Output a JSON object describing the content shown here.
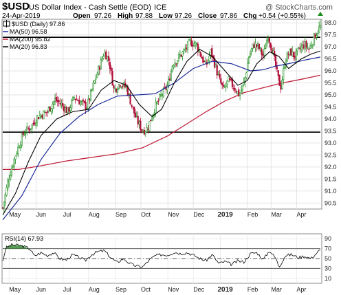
{
  "header": {
    "symbol": "$USD",
    "title": "US Dollar Index - Cash Settle (EOD)",
    "exchange": "ICE",
    "watermark": "@ StockCharts.com",
    "date": "24-Apr-2019",
    "quote": {
      "open_label": "Open",
      "open": "97.26",
      "high_label": "High",
      "high": "97.88",
      "low_label": "Low",
      "low": "97.26",
      "close_label": "Close",
      "close": "97.86",
      "chg_label": "Chg",
      "chg": "+0.54 (+0.55%)"
    }
  },
  "legend": {
    "main": "$USD (Daily) 97.86",
    "ma50": "MA(50) 96.58",
    "ma200": "MA(200) 95.82",
    "ma20": "MA(20) 96.83"
  },
  "rsi_legend": "RSI(14) 67.93",
  "colors": {
    "up": "#1a8c1a",
    "down": "#b0103a",
    "ma50": "#1a2a9a",
    "ma200": "#c0203a",
    "ma20": "#000000",
    "rsi_fill": "#3a8a3a"
  },
  "x_labels": [
    "May",
    "Jun",
    "Jul",
    "Aug",
    "Sep",
    "Oct",
    "Nov",
    "Dec",
    "2019",
    "Feb",
    "Mar",
    "Apr"
  ],
  "chart_data": {
    "type": "candlestick",
    "y_ticks": [
      "90.5",
      "91.0",
      "91.5",
      "92.0",
      "92.5",
      "93.0",
      "93.5",
      "94.0",
      "94.5",
      "95.0",
      "95.5",
      "96.0",
      "96.5",
      "97.0",
      "97.5",
      "98.0"
    ],
    "ylim": [
      90.25,
      98.15
    ],
    "horizontal_lines": [
      97.4,
      93.45
    ],
    "price_path": [
      [
        0,
        90.3
      ],
      [
        0.018,
        91.5
      ],
      [
        0.04,
        92.5
      ],
      [
        0.065,
        93.4
      ],
      [
        0.09,
        93.7
      ],
      [
        0.11,
        94.1
      ],
      [
        0.14,
        94.3
      ],
      [
        0.165,
        94.8
      ],
      [
        0.185,
        94.6
      ],
      [
        0.205,
        94.3
      ],
      [
        0.225,
        94.9
      ],
      [
        0.245,
        94.7
      ],
      [
        0.265,
        94.5
      ],
      [
        0.29,
        95.6
      ],
      [
        0.305,
        96.2
      ],
      [
        0.32,
        96.8
      ],
      [
        0.335,
        96.4
      ],
      [
        0.35,
        95.2
      ],
      [
        0.37,
        95.5
      ],
      [
        0.39,
        95.3
      ],
      [
        0.405,
        94.6
      ],
      [
        0.42,
        94.0
      ],
      [
        0.44,
        93.5
      ],
      [
        0.455,
        93.6
      ],
      [
        0.48,
        94.5
      ],
      [
        0.5,
        95.0
      ],
      [
        0.52,
        95.4
      ],
      [
        0.535,
        96.3
      ],
      [
        0.55,
        96.5
      ],
      [
        0.57,
        96.8
      ],
      [
        0.59,
        97.2
      ],
      [
        0.61,
        97.1
      ],
      [
        0.625,
        96.6
      ],
      [
        0.64,
        96.2
      ],
      [
        0.655,
        96.8
      ],
      [
        0.665,
        96.4
      ],
      [
        0.68,
        95.7
      ],
      [
        0.695,
        95.2
      ],
      [
        0.71,
        95.6
      ],
      [
        0.73,
        95.3
      ],
      [
        0.745,
        95.0
      ],
      [
        0.76,
        95.5
      ],
      [
        0.775,
        96.6
      ],
      [
        0.79,
        97.1
      ],
      [
        0.805,
        97.0
      ],
      [
        0.82,
        96.6
      ],
      [
        0.835,
        97.5
      ],
      [
        0.85,
        96.8
      ],
      [
        0.865,
        95.8
      ],
      [
        0.875,
        95.3
      ],
      [
        0.89,
        96.5
      ],
      [
        0.905,
        96.8
      ],
      [
        0.92,
        96.6
      ],
      [
        0.935,
        96.9
      ],
      [
        0.95,
        97.1
      ],
      [
        0.965,
        96.9
      ],
      [
        0.98,
        97.4
      ],
      [
        1,
        97.86
      ]
    ],
    "ma50_path": [
      [
        0,
        89.8
      ],
      [
        0.06,
        90.8
      ],
      [
        0.12,
        92.3
      ],
      [
        0.18,
        93.4
      ],
      [
        0.24,
        94.1
      ],
      [
        0.3,
        94.6
      ],
      [
        0.36,
        94.95
      ],
      [
        0.42,
        95.0
      ],
      [
        0.48,
        95.05
      ],
      [
        0.54,
        95.5
      ],
      [
        0.6,
        96.1
      ],
      [
        0.66,
        96.4
      ],
      [
        0.72,
        96.3
      ],
      [
        0.78,
        96.0
      ],
      [
        0.82,
        96.05
      ],
      [
        0.86,
        96.2
      ],
      [
        0.9,
        96.3
      ],
      [
        0.95,
        96.45
      ],
      [
        1,
        96.58
      ]
    ],
    "ma200_path": [
      [
        0,
        91.9
      ],
      [
        0.05,
        91.9
      ],
      [
        0.12,
        92.05
      ],
      [
        0.2,
        92.25
      ],
      [
        0.28,
        92.4
      ],
      [
        0.36,
        92.55
      ],
      [
        0.44,
        92.8
      ],
      [
        0.52,
        93.3
      ],
      [
        0.58,
        93.8
      ],
      [
        0.64,
        94.3
      ],
      [
        0.7,
        94.75
      ],
      [
        0.76,
        95.1
      ],
      [
        0.82,
        95.3
      ],
      [
        0.88,
        95.5
      ],
      [
        0.94,
        95.65
      ],
      [
        1,
        95.82
      ]
    ],
    "ma20_path": [
      [
        0,
        90.0
      ],
      [
        0.04,
        90.9
      ],
      [
        0.08,
        92.2
      ],
      [
        0.12,
        93.3
      ],
      [
        0.17,
        94.0
      ],
      [
        0.22,
        94.3
      ],
      [
        0.27,
        94.4
      ],
      [
        0.31,
        95.2
      ],
      [
        0.35,
        95.6
      ],
      [
        0.39,
        95.4
      ],
      [
        0.43,
        94.6
      ],
      [
        0.47,
        94.1
      ],
      [
        0.5,
        94.4
      ],
      [
        0.54,
        95.5
      ],
      [
        0.58,
        96.4
      ],
      [
        0.62,
        96.9
      ],
      [
        0.66,
        96.6
      ],
      [
        0.7,
        96.0
      ],
      [
        0.74,
        95.4
      ],
      [
        0.77,
        95.6
      ],
      [
        0.8,
        96.3
      ],
      [
        0.84,
        96.8
      ],
      [
        0.87,
        96.6
      ],
      [
        0.9,
        96.1
      ],
      [
        0.94,
        96.5
      ],
      [
        0.97,
        96.7
      ],
      [
        1,
        96.83
      ]
    ],
    "rsi": {
      "ylim": [
        0,
        100
      ],
      "ticks": [
        "10",
        "30",
        "50",
        "70",
        "90"
      ],
      "lines": [
        70,
        50,
        30
      ],
      "path": [
        [
          0,
          45
        ],
        [
          0.01,
          72
        ],
        [
          0.03,
          78
        ],
        [
          0.06,
          76
        ],
        [
          0.085,
          70
        ],
        [
          0.1,
          55
        ],
        [
          0.12,
          62
        ],
        [
          0.14,
          56
        ],
        [
          0.16,
          62
        ],
        [
          0.18,
          50
        ],
        [
          0.2,
          47
        ],
        [
          0.22,
          58
        ],
        [
          0.24,
          52
        ],
        [
          0.26,
          46
        ],
        [
          0.28,
          58
        ],
        [
          0.3,
          64
        ],
        [
          0.32,
          66
        ],
        [
          0.34,
          52
        ],
        [
          0.36,
          42
        ],
        [
          0.38,
          50
        ],
        [
          0.4,
          40
        ],
        [
          0.42,
          35
        ],
        [
          0.44,
          33
        ],
        [
          0.46,
          46
        ],
        [
          0.48,
          56
        ],
        [
          0.5,
          58
        ],
        [
          0.52,
          57
        ],
        [
          0.54,
          63
        ],
        [
          0.56,
          60
        ],
        [
          0.58,
          62
        ],
        [
          0.6,
          57
        ],
        [
          0.62,
          50
        ],
        [
          0.64,
          46
        ],
        [
          0.66,
          58
        ],
        [
          0.68,
          40
        ],
        [
          0.7,
          44
        ],
        [
          0.72,
          38
        ],
        [
          0.74,
          45
        ],
        [
          0.76,
          43
        ],
        [
          0.78,
          60
        ],
        [
          0.8,
          62
        ],
        [
          0.82,
          48
        ],
        [
          0.84,
          66
        ],
        [
          0.86,
          50
        ],
        [
          0.87,
          33
        ],
        [
          0.89,
          56
        ],
        [
          0.91,
          58
        ],
        [
          0.93,
          52
        ],
        [
          0.95,
          55
        ],
        [
          0.97,
          50
        ],
        [
          0.99,
          62
        ],
        [
          1,
          67.93
        ]
      ]
    }
  }
}
